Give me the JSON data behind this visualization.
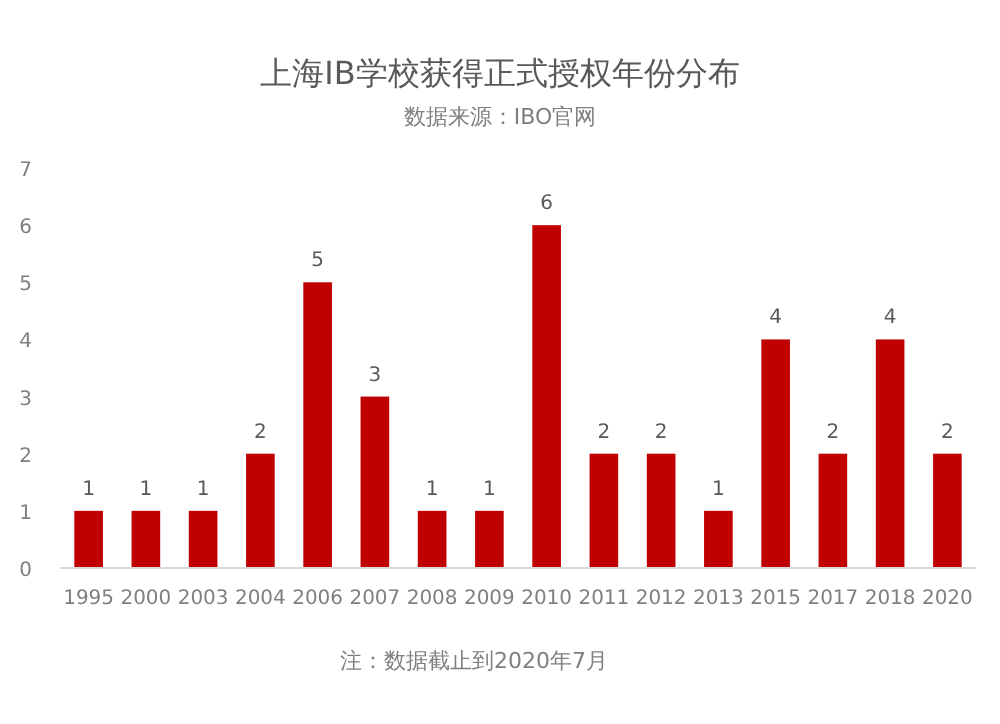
{
  "chart_data": {
    "type": "bar",
    "title": "上海IB学校获得正式授权年份分布",
    "subtitle": "数据来源：IBO官网",
    "categories": [
      "1995",
      "2000",
      "2003",
      "2004",
      "2006",
      "2007",
      "2008",
      "2009",
      "2010",
      "2011",
      "2012",
      "2013",
      "2015",
      "2017",
      "2018",
      "2020"
    ],
    "values": [
      1,
      1,
      1,
      2,
      5,
      3,
      1,
      1,
      6,
      2,
      2,
      1,
      4,
      2,
      4,
      2
    ],
    "color": "#c00000",
    "ylim": [
      0,
      7
    ],
    "yticks": [
      0,
      1,
      2,
      3,
      4,
      5,
      6,
      7
    ],
    "grid": false,
    "data_labels": true,
    "annotations": [
      "注：数据截止到2020年7月"
    ]
  }
}
